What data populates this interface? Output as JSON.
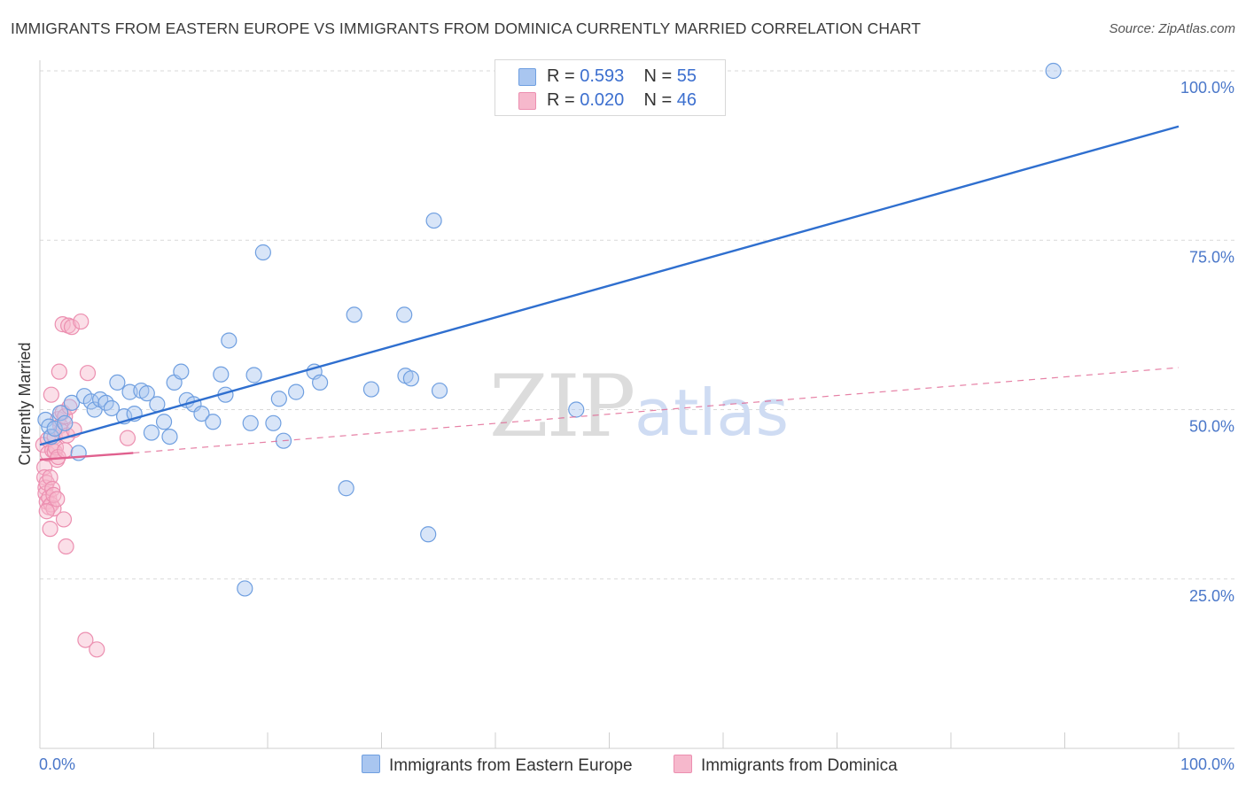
{
  "header": {
    "title": "IMMIGRANTS FROM EASTERN EUROPE VS IMMIGRANTS FROM DOMINICA CURRENTLY MARRIED CORRELATION CHART",
    "source": "Source: ZipAtlas.com"
  },
  "legend": {
    "rows": [
      {
        "r_label": "R =",
        "r_value": "0.593",
        "n_label": "N =",
        "n_value": "55"
      },
      {
        "r_label": "R =",
        "r_value": "0.020",
        "n_label": "N =",
        "n_value": "46"
      }
    ]
  },
  "bottom_legend": {
    "series_a": "Immigrants from Eastern Europe",
    "series_b": "Immigrants from Dominica"
  },
  "watermark": {
    "zip": "ZIP",
    "atlas": "atlas"
  },
  "colors": {
    "blue_fill": "#a9c6f0",
    "blue_stroke": "#6f9fe0",
    "blue_line": "#2f6fcf",
    "pink_fill": "#f6b8cc",
    "pink_stroke": "#ec8fb0",
    "pink_line": "#e0608e",
    "grid": "#d9d9d9",
    "axis_text": "#4a77c9"
  },
  "chart_data": {
    "type": "scatter",
    "ylabel": "Currently Married",
    "xlim": [
      0,
      100
    ],
    "ylim": [
      0,
      100
    ],
    "x_ticks": [
      "0.0%",
      "100.0%"
    ],
    "y_ticks": [
      {
        "value": 25,
        "label": "25.0%"
      },
      {
        "value": 50,
        "label": "50.0%"
      },
      {
        "value": 75,
        "label": "75.0%"
      },
      {
        "value": 100,
        "label": "100.0%"
      }
    ],
    "series": [
      {
        "name": "Immigrants from Eastern Europe",
        "points": [
          [
            0.5,
            48.5
          ],
          [
            0.8,
            47.5
          ],
          [
            1.0,
            46.0
          ],
          [
            1.3,
            47.2
          ],
          [
            1.8,
            49.5
          ],
          [
            2.2,
            48.0
          ],
          [
            2.8,
            51.0
          ],
          [
            3.4,
            43.6
          ],
          [
            3.9,
            52.0
          ],
          [
            4.5,
            51.2
          ],
          [
            4.8,
            50.0
          ],
          [
            5.3,
            51.5
          ],
          [
            5.8,
            51.0
          ],
          [
            6.3,
            50.2
          ],
          [
            6.8,
            54.0
          ],
          [
            7.4,
            49.0
          ],
          [
            7.9,
            52.6
          ],
          [
            8.3,
            49.4
          ],
          [
            8.9,
            52.8
          ],
          [
            9.4,
            52.4
          ],
          [
            9.8,
            46.6
          ],
          [
            10.3,
            50.8
          ],
          [
            10.9,
            48.2
          ],
          [
            11.4,
            46.0
          ],
          [
            11.8,
            54.0
          ],
          [
            12.4,
            55.6
          ],
          [
            12.9,
            51.4
          ],
          [
            13.5,
            50.8
          ],
          [
            14.2,
            49.4
          ],
          [
            15.2,
            48.2
          ],
          [
            15.9,
            55.2
          ],
          [
            16.3,
            52.2
          ],
          [
            16.6,
            60.2
          ],
          [
            18.0,
            23.6
          ],
          [
            18.5,
            48.0
          ],
          [
            18.8,
            55.1
          ],
          [
            19.6,
            73.2
          ],
          [
            20.5,
            48.0
          ],
          [
            21.0,
            51.6
          ],
          [
            21.4,
            45.4
          ],
          [
            22.5,
            52.6
          ],
          [
            24.1,
            55.6
          ],
          [
            24.6,
            54.0
          ],
          [
            26.9,
            38.4
          ],
          [
            27.6,
            64.0
          ],
          [
            29.1,
            53.0
          ],
          [
            32.0,
            64.0
          ],
          [
            32.1,
            55.0
          ],
          [
            32.6,
            54.6
          ],
          [
            34.1,
            31.6
          ],
          [
            34.6,
            77.9
          ],
          [
            35.1,
            52.8
          ],
          [
            47.1,
            50.0
          ],
          [
            47.2,
            100.0
          ],
          [
            89.0,
            100.0
          ]
        ],
        "trend": {
          "x": [
            0,
            100
          ],
          "y": [
            44.8,
            91.8
          ]
        }
      },
      {
        "name": "Immigrants from Dominica",
        "points": [
          [
            0.3,
            44.8
          ],
          [
            0.4,
            41.5
          ],
          [
            0.4,
            40.0
          ],
          [
            0.5,
            38.5
          ],
          [
            0.5,
            37.6
          ],
          [
            0.6,
            36.4
          ],
          [
            0.6,
            39.2
          ],
          [
            0.7,
            45.6
          ],
          [
            0.7,
            43.5
          ],
          [
            0.8,
            35.6
          ],
          [
            0.8,
            37.0
          ],
          [
            0.9,
            40.0
          ],
          [
            0.9,
            32.4
          ],
          [
            1.0,
            52.2
          ],
          [
            1.0,
            36.0
          ],
          [
            1.1,
            44.0
          ],
          [
            1.1,
            38.3
          ],
          [
            1.2,
            35.4
          ],
          [
            1.2,
            37.4
          ],
          [
            1.3,
            46.0
          ],
          [
            1.3,
            43.8
          ],
          [
            1.4,
            44.4
          ],
          [
            1.5,
            42.6
          ],
          [
            1.5,
            36.8
          ],
          [
            1.6,
            43.0
          ],
          [
            1.6,
            48.6
          ],
          [
            1.7,
            55.6
          ],
          [
            1.8,
            47.6
          ],
          [
            1.9,
            46.8
          ],
          [
            2.0,
            62.6
          ],
          [
            2.0,
            49.6
          ],
          [
            2.1,
            33.8
          ],
          [
            2.2,
            49.0
          ],
          [
            2.2,
            44.0
          ],
          [
            2.3,
            29.8
          ],
          [
            2.4,
            46.2
          ],
          [
            2.5,
            62.4
          ],
          [
            2.6,
            50.4
          ],
          [
            2.8,
            62.2
          ],
          [
            3.0,
            47.0
          ],
          [
            3.6,
            63.0
          ],
          [
            4.0,
            16.0
          ],
          [
            4.2,
            55.4
          ],
          [
            5.0,
            14.6
          ],
          [
            7.7,
            45.8
          ],
          [
            0.6,
            35.0
          ]
        ],
        "trend": {
          "x": [
            0,
            8.2
          ],
          "y": [
            42.6,
            43.6
          ]
        },
        "trend_extension": {
          "x": [
            8.2,
            100
          ],
          "y": [
            43.6,
            56.2
          ]
        }
      }
    ]
  }
}
